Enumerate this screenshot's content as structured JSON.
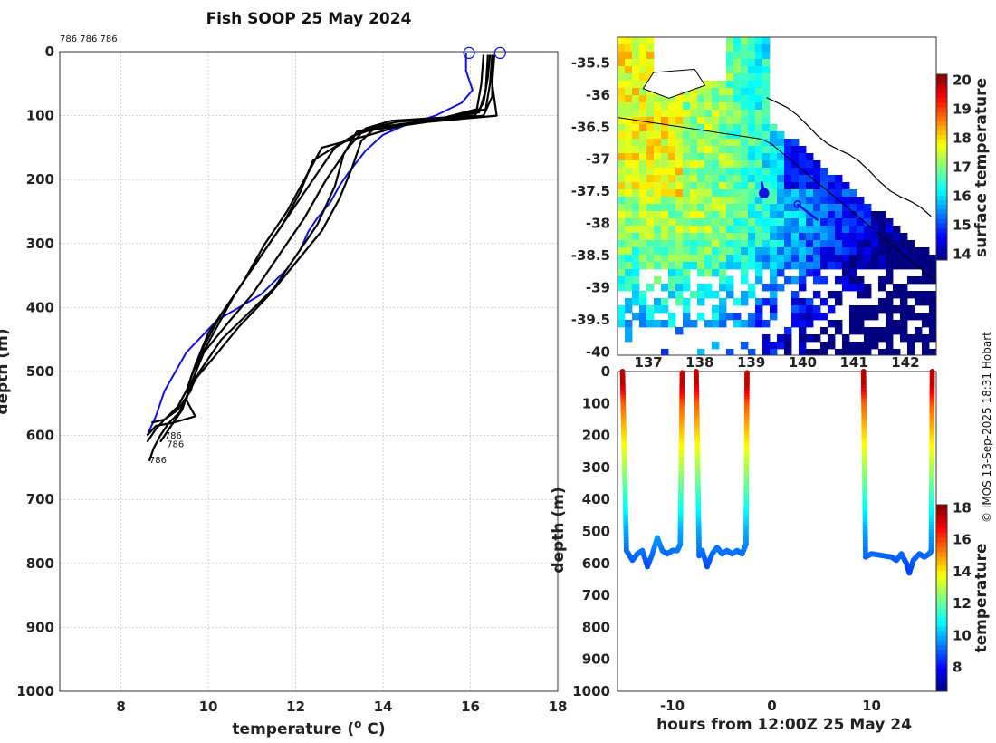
{
  "title": "Fish SOOP 25 May 2024",
  "credit": "© IMOS 13-Sep-2025 18:31 Hobart",
  "colors": {
    "blue_profile": "#1010e0",
    "black_profile": "#000000",
    "land": "#ffffff",
    "coast": "#000000"
  },
  "chart_data": [
    {
      "id": "profiles",
      "type": "line",
      "title": "Fish SOOP 25 May 2024",
      "xlabel": "temperature (° C)",
      "ylabel": "depth (m)",
      "xlim": [
        6.6,
        18
      ],
      "ylim": [
        0,
        1000
      ],
      "y_reversed": true,
      "xticks": [
        8,
        10,
        12,
        14,
        16,
        18
      ],
      "yticks": [
        0,
        100,
        200,
        300,
        400,
        500,
        600,
        700,
        800,
        900,
        1000
      ],
      "grid": true,
      "top_label": "786 786 786",
      "annotations": [
        {
          "text": "786",
          "x": 9.0,
          "y": 605
        },
        {
          "text": "786",
          "x": 9.05,
          "y": 618
        },
        {
          "text": "786",
          "x": 8.65,
          "y": 643
        }
      ],
      "series": [
        {
          "name": "profile-blue",
          "color": "#1010e0",
          "points": [
            [
              15.9,
              2
            ],
            [
              15.9,
              30
            ],
            [
              16.05,
              60
            ],
            [
              15.8,
              80
            ],
            [
              15.2,
              100
            ],
            [
              14.5,
              115
            ],
            [
              14.0,
              130
            ],
            [
              13.6,
              155
            ],
            [
              13.2,
              190
            ],
            [
              13.0,
              210
            ],
            [
              12.8,
              235
            ],
            [
              12.5,
              260
            ],
            [
              12.3,
              280
            ],
            [
              12.1,
              310
            ],
            [
              11.8,
              340
            ],
            [
              11.2,
              380
            ],
            [
              10.2,
              420
            ],
            [
              9.5,
              470
            ],
            [
              9.0,
              530
            ],
            [
              8.8,
              570
            ],
            [
              8.6,
              600
            ]
          ]
        },
        {
          "name": "profile-1",
          "color": "#000000",
          "points": [
            [
              16.45,
              5
            ],
            [
              16.4,
              40
            ],
            [
              16.3,
              80
            ],
            [
              16.1,
              100
            ],
            [
              14.2,
              108
            ],
            [
              13.6,
              120
            ],
            [
              13.2,
              150
            ],
            [
              12.7,
              200
            ],
            [
              12.2,
              260
            ],
            [
              11.6,
              320
            ],
            [
              11.0,
              380
            ],
            [
              10.5,
              420
            ],
            [
              9.9,
              470
            ],
            [
              9.6,
              520
            ],
            [
              9.4,
              560
            ],
            [
              9.1,
              580
            ],
            [
              8.9,
              600
            ],
            [
              8.75,
              620
            ],
            [
              8.65,
              640
            ]
          ]
        },
        {
          "name": "profile-2",
          "color": "#000000",
          "points": [
            [
              16.5,
              5
            ],
            [
              16.45,
              50
            ],
            [
              16.35,
              90
            ],
            [
              15.5,
              103
            ],
            [
              14.3,
              110
            ],
            [
              13.4,
              125
            ],
            [
              13.1,
              160
            ],
            [
              12.9,
              210
            ],
            [
              12.5,
              270
            ],
            [
              12.0,
              320
            ],
            [
              11.5,
              370
            ],
            [
              10.9,
              410
            ],
            [
              10.3,
              450
            ],
            [
              9.8,
              500
            ],
            [
              9.5,
              540
            ],
            [
              9.3,
              570
            ],
            [
              9.1,
              590
            ],
            [
              8.9,
              610
            ]
          ]
        },
        {
          "name": "profile-3",
          "color": "#000000",
          "points": [
            [
              16.55,
              5
            ],
            [
              16.5,
              50
            ],
            [
              16.6,
              100
            ],
            [
              15.0,
              110
            ],
            [
              13.8,
              120
            ],
            [
              13.5,
              140
            ],
            [
              13.3,
              180
            ],
            [
              13.0,
              230
            ],
            [
              12.6,
              280
            ],
            [
              12.0,
              330
            ],
            [
              11.4,
              380
            ],
            [
              10.7,
              430
            ],
            [
              10.1,
              480
            ],
            [
              9.6,
              520
            ],
            [
              9.4,
              560
            ],
            [
              9.2,
              580
            ],
            [
              9.0,
              600
            ]
          ]
        },
        {
          "name": "profile-4",
          "color": "#000000",
          "points": [
            [
              16.5,
              5
            ],
            [
              16.5,
              70
            ],
            [
              16.3,
              100
            ],
            [
              14.6,
              112
            ],
            [
              13.7,
              130
            ],
            [
              12.6,
              150
            ],
            [
              12.2,
              200
            ],
            [
              11.8,
              250
            ],
            [
              11.3,
              300
            ],
            [
              10.8,
              360
            ],
            [
              10.3,
              410
            ],
            [
              9.9,
              460
            ],
            [
              9.6,
              510
            ],
            [
              9.5,
              545
            ],
            [
              9.7,
              570
            ],
            [
              9.2,
              580
            ],
            [
              8.8,
              585
            ],
            [
              8.6,
              600
            ]
          ]
        },
        {
          "name": "profile-5",
          "color": "#000000",
          "points": [
            [
              16.4,
              5
            ],
            [
              16.35,
              60
            ],
            [
              16.2,
              95
            ],
            [
              15.2,
              106
            ],
            [
              13.9,
              118
            ],
            [
              13.3,
              132
            ],
            [
              12.4,
              170
            ],
            [
              12.1,
              220
            ],
            [
              11.7,
              270
            ],
            [
              11.2,
              320
            ],
            [
              10.6,
              380
            ],
            [
              10.2,
              430
            ],
            [
              9.8,
              480
            ],
            [
              9.6,
              530
            ],
            [
              9.3,
              560
            ],
            [
              9.0,
              575
            ],
            [
              8.7,
              580
            ]
          ]
        },
        {
          "name": "profile-6",
          "color": "#000000",
          "points": [
            [
              16.3,
              5
            ],
            [
              16.25,
              50
            ],
            [
              16.15,
              90
            ],
            [
              15.0,
              110
            ],
            [
              13.5,
              125
            ],
            [
              12.9,
              150
            ],
            [
              12.5,
              190
            ],
            [
              12.0,
              240
            ],
            [
              11.5,
              290
            ],
            [
              11.0,
              340
            ],
            [
              10.5,
              390
            ],
            [
              10.0,
              440
            ],
            [
              9.7,
              490
            ],
            [
              9.5,
              530
            ],
            [
              9.3,
              555
            ],
            [
              9.0,
              575
            ],
            [
              8.8,
              590
            ],
            [
              8.6,
              610
            ]
          ]
        }
      ],
      "start_markers": [
        [
          15.97,
          2
        ],
        [
          16.68,
          2
        ]
      ]
    },
    {
      "id": "sst-map",
      "type": "heatmap",
      "colorbar_label": "surface temperature",
      "color_range": [
        13.8,
        20.2
      ],
      "colorbar_ticks": [
        14,
        15,
        16,
        17,
        18,
        19,
        20
      ],
      "lon_range": [
        136.4,
        142.6
      ],
      "lat_range": [
        -40.05,
        -35.1
      ],
      "xticks": [
        137,
        138,
        139,
        140,
        141,
        142
      ],
      "yticks": [
        "-35.5",
        "-36",
        "-36.5",
        "-37",
        "-37.5",
        "-38",
        "-38.5",
        "-39",
        "-39.5",
        "-40"
      ],
      "ytick_values": [
        -35.5,
        -36,
        -36.5,
        -37,
        -37.5,
        -38,
        -38.5,
        -39,
        -39.5,
        -40
      ],
      "tracks": [
        {
          "name": "track-a",
          "points": [
            [
              139.2,
              -37.35
            ],
            [
              139.25,
              -37.5
            ]
          ],
          "end": [
            139.25,
            -37.53
          ]
        },
        {
          "name": "track-b",
          "points": [
            [
              139.9,
              -37.7
            ],
            [
              140.3,
              -37.95
            ]
          ],
          "end": [
            139.9,
            -37.7
          ]
        }
      ]
    },
    {
      "id": "depth-time",
      "type": "scatter",
      "xlabel": "hours from 12:00Z 25 May 24",
      "ylabel": "depth (m)",
      "colorbar_label": "temperature",
      "color_range": [
        6.5,
        18.2
      ],
      "colorbar_ticks": [
        8,
        10,
        12,
        14,
        16,
        18
      ],
      "xlim": [
        -15.5,
        16.5
      ],
      "ylim": [
        0,
        1000
      ],
      "xticks": [
        -10,
        0,
        10
      ],
      "yticks": [
        0,
        100,
        200,
        300,
        400,
        500,
        600,
        700,
        800,
        900,
        1000
      ],
      "casts": [
        {
          "down": [
            -15.0,
            -14.6
          ],
          "bottom_depth": 560,
          "bottom": [
            [
              -14.6,
              560
            ],
            [
              -14,
              590
            ],
            [
              -13.5,
              570
            ],
            [
              -13,
              560
            ],
            [
              -12.5,
              610
            ],
            [
              -12,
              570
            ],
            [
              -11.5,
              520
            ],
            [
              -11,
              560
            ],
            [
              -10.5,
              570
            ],
            [
              -10,
              560
            ],
            [
              -9.5,
              560
            ],
            [
              -9.2,
              540
            ]
          ],
          "up": [
            -9.2,
            -9.0
          ]
        },
        {
          "down": [
            -7.6,
            -7.3
          ],
          "bottom_depth": 580,
          "bottom": [
            [
              -7.3,
              570
            ],
            [
              -7,
              560
            ],
            [
              -6.5,
              610
            ],
            [
              -6,
              570
            ],
            [
              -5.5,
              550
            ],
            [
              -5,
              570
            ],
            [
              -4.5,
              560
            ],
            [
              -4,
              570
            ],
            [
              -3.5,
              560
            ],
            [
              -3.0,
              570
            ],
            [
              -2.6,
              540
            ]
          ],
          "up": [
            -2.6,
            -2.5
          ]
        },
        {
          "down": [
            9.2,
            9.4
          ],
          "bottom_depth": 570,
          "bottom": [
            [
              9.4,
              580
            ],
            [
              10,
              570
            ],
            [
              11,
              575
            ],
            [
              12,
              580
            ],
            [
              12.5,
              590
            ],
            [
              13,
              570
            ],
            [
              13.5,
              600
            ],
            [
              13.8,
              630
            ],
            [
              14.2,
              590
            ],
            [
              14.8,
              570
            ],
            [
              15.3,
              580
            ],
            [
              15.8,
              570
            ],
            [
              16,
              560
            ]
          ],
          "up": [
            16,
            16.1
          ]
        }
      ]
    }
  ]
}
